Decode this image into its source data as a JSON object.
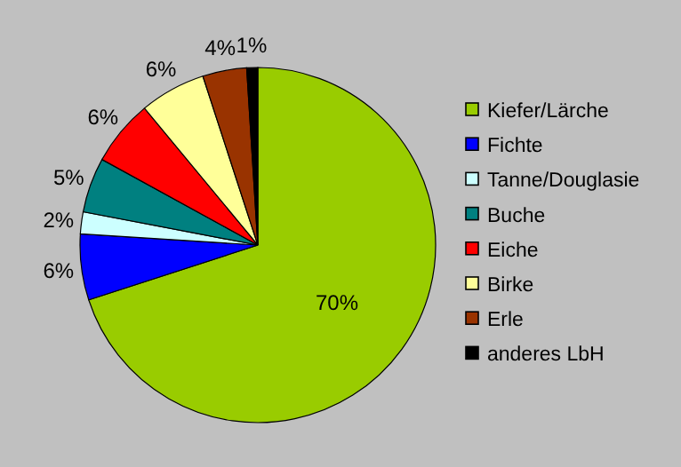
{
  "chart_data": {
    "type": "pie",
    "categories": [
      "Kiefer/Lärche",
      "Fichte",
      "Tanne/Douglasie",
      "Buche",
      "Eiche",
      "Birke",
      "Erle",
      "anderes LbH"
    ],
    "values": [
      70,
      6,
      2,
      5,
      6,
      6,
      4,
      1
    ],
    "value_labels": [
      "70%",
      "6%",
      "2%",
      "5%",
      "6%",
      "6%",
      "4%",
      "1%"
    ],
    "colors": [
      "#99cc00",
      "#0000ff",
      "#ccffff",
      "#008080",
      "#ff0000",
      "#ffff99",
      "#993300",
      "#000000"
    ],
    "legend": "right"
  }
}
